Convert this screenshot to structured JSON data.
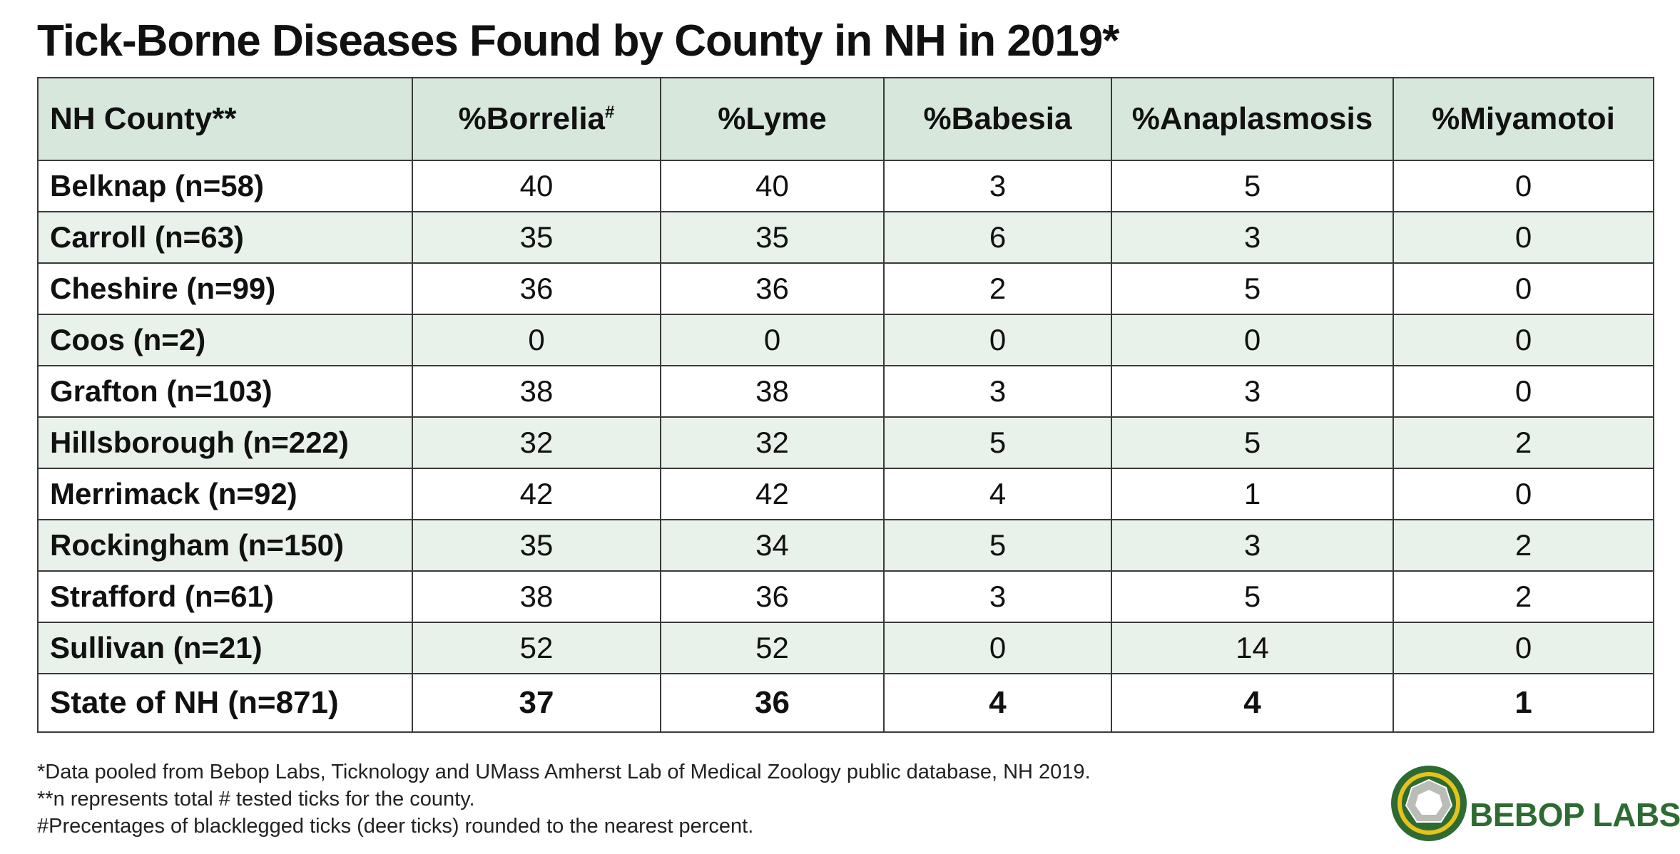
{
  "title": "Tick-Borne Diseases Found by County in NH in 2019*",
  "header": {
    "county": "NH County**",
    "borrelia": "%Borrelia",
    "borrelia_mark": "#",
    "lyme": "%Lyme",
    "babesia": "%Babesia",
    "anaplasmosis": "%Anaplasmosis",
    "miyamotoi": "%Miyamotoi"
  },
  "chart_data": {
    "type": "table",
    "title": "Tick-Borne Diseases Found by County in NH in 2019*",
    "columns": [
      "NH County**",
      "%Borrelia#",
      "%Lyme",
      "%Babesia",
      "%Anaplasmosis",
      "%Miyamotoi"
    ],
    "rows": [
      [
        "Belknap (n=58)",
        "40",
        "40",
        "3",
        "5",
        "0"
      ],
      [
        "Carroll (n=63)",
        "35",
        "35",
        "6",
        "3",
        "0"
      ],
      [
        "Cheshire (n=99)",
        "36",
        "36",
        "2",
        "5",
        "0"
      ],
      [
        "Coos (n=2)",
        "0",
        "0",
        "0",
        "0",
        "0"
      ],
      [
        "Grafton (n=103)",
        "38",
        "38",
        "3",
        "3",
        "0"
      ],
      [
        "Hillsborough (n=222)",
        "32",
        "32",
        "5",
        "5",
        "2"
      ],
      [
        "Merrimack (n=92)",
        "42",
        "42",
        "4",
        "1",
        "0"
      ],
      [
        "Rockingham (n=150)",
        "35",
        "34",
        "5",
        "3",
        "2"
      ],
      [
        "Strafford (n=61)",
        "38",
        "36",
        "3",
        "5",
        "2"
      ],
      [
        "Sullivan (n=21)",
        "52",
        "52",
        "0",
        "14",
        "0"
      ]
    ],
    "total_row": [
      "State of NH (n=871)",
      "37",
      "36",
      "4",
      "4",
      "1"
    ]
  },
  "footnotes": {
    "line1": "*Data pooled from Bebop Labs, Ticknology and UMass Amherst Lab of Medical Zoology public database, NH 2019.",
    "line2": "**n represents total # tested ticks for the county.",
    "line3": "#Precentages of blacklegged ticks (deer ticks)  rounded to the nearest percent."
  },
  "logo": {
    "text": "BEBOP LABS",
    "icon": "bebop-labs-logo-icon",
    "colors": {
      "green": "#2e6b33",
      "gold": "#e6c21c",
      "grey": "#b9bcb7"
    }
  },
  "colors": {
    "header_bg": "#d7e7dc",
    "stripe_bg": "#e8f1ea",
    "border": "#3a3a3a"
  }
}
